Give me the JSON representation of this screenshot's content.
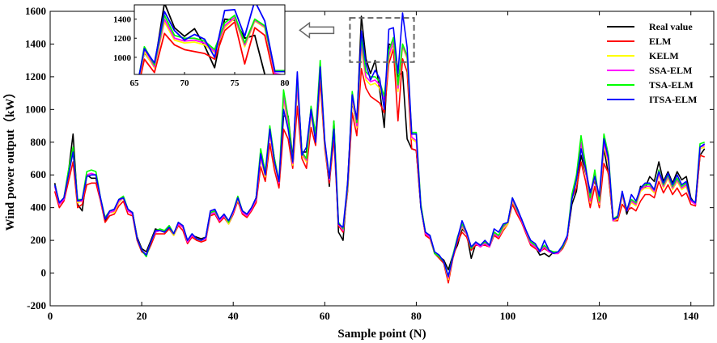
{
  "chart_data": {
    "type": "line",
    "title": "",
    "xlabel": "Sample point (N)",
    "ylabel": "Wind power output（kW）",
    "xlim": [
      0,
      145
    ],
    "ylim": [
      -200,
      1600
    ],
    "xticks": [
      0,
      20,
      40,
      60,
      80,
      100,
      120,
      140
    ],
    "yticks": [
      -200,
      0,
      200,
      400,
      600,
      800,
      1000,
      1200,
      1400,
      1600
    ],
    "legend_position": "top-right",
    "series": [
      {
        "name": "Real value",
        "color": "#000000",
        "values": [
          550,
          420,
          450,
          620,
          850,
          420,
          380,
          600,
          580,
          580,
          450,
          320,
          370,
          380,
          440,
          460,
          380,
          370,
          220,
          150,
          130,
          200,
          270,
          260,
          250,
          290,
          240,
          300,
          280,
          190,
          230,
          220,
          210,
          220,
          370,
          380,
          320,
          360,
          310,
          370,
          460,
          380,
          360,
          400,
          460,
          700,
          600,
          880,
          700,
          560,
          960,
          960,
          700,
          1180,
          740,
          740,
          1000,
          850,
          1220,
          790,
          530,
          930,
          250,
          200,
          560,
          1050,
          900,
          1570,
          1310,
          1220,
          1300,
          1120,
          890,
          1400,
          1390,
          1200,
          1230,
          820,
          760,
          750,
          400,
          240,
          220,
          120,
          100,
          80,
          20,
          110,
          170,
          270,
          240,
          90,
          180,
          160,
          180,
          170,
          250,
          230,
          280,
          310,
          440,
          380,
          330,
          250,
          180,
          160,
          110,
          120,
          100,
          130,
          130,
          160,
          220,
          420,
          500,
          720,
          610,
          500,
          560,
          470,
          760,
          600,
          320,
          330,
          480,
          360,
          440,
          420,
          530,
          520,
          590,
          560,
          680,
          560,
          620,
          550,
          620,
          570,
          590,
          460,
          420,
          720,
          760
        ]
      },
      {
        "name": "ELM",
        "color": "#ff0000",
        "values": [
          500,
          400,
          440,
          560,
          680,
          400,
          420,
          540,
          550,
          550,
          440,
          310,
          350,
          360,
          410,
          440,
          360,
          350,
          200,
          130,
          110,
          170,
          240,
          240,
          240,
          270,
          230,
          290,
          260,
          180,
          220,
          200,
          190,
          200,
          350,
          360,
          310,
          340,
          300,
          360,
          440,
          360,
          340,
          380,
          430,
          650,
          560,
          790,
          630,
          520,
          880,
          820,
          640,
          1020,
          700,
          640,
          890,
          780,
          1180,
          760,
          550,
          820,
          290,
          250,
          500,
          980,
          840,
          1250,
          1130,
          1080,
          1060,
          1040,
          980,
          1280,
          1370,
          930,
          1310,
          1230,
          760,
          750,
          410,
          230,
          210,
          120,
          90,
          60,
          -60,
          90,
          190,
          250,
          220,
          140,
          170,
          170,
          170,
          160,
          230,
          210,
          260,
          300,
          420,
          360,
          310,
          240,
          170,
          150,
          130,
          150,
          130,
          120,
          120,
          150,
          210,
          460,
          520,
          680,
          560,
          400,
          530,
          400,
          670,
          610,
          320,
          320,
          420,
          380,
          400,
          380,
          440,
          480,
          480,
          460,
          560,
          490,
          540,
          480,
          520,
          470,
          490,
          420,
          410,
          720,
          710
        ]
      },
      {
        "name": "KELM",
        "color": "#ffff00",
        "values": [
          530,
          420,
          460,
          600,
          740,
          430,
          440,
          590,
          600,
          600,
          450,
          330,
          370,
          370,
          430,
          460,
          380,
          370,
          210,
          140,
          110,
          190,
          250,
          260,
          250,
          280,
          230,
          300,
          280,
          190,
          230,
          210,
          200,
          210,
          360,
          370,
          320,
          350,
          300,
          370,
          450,
          370,
          350,
          390,
          450,
          700,
          590,
          850,
          670,
          550,
          1060,
          900,
          660,
          1130,
          720,
          680,
          960,
          820,
          1240,
          780,
          570,
          880,
          300,
          260,
          520,
          1060,
          890,
          1370,
          1180,
          1150,
          1160,
          1130,
          1050,
          1310,
          1410,
          1110,
          1380,
          1310,
          820,
          800,
          420,
          240,
          220,
          120,
          100,
          70,
          -40,
          100,
          210,
          280,
          240,
          150,
          180,
          160,
          180,
          160,
          240,
          220,
          270,
          300,
          440,
          380,
          320,
          250,
          180,
          160,
          130,
          160,
          130,
          120,
          120,
          160,
          220,
          460,
          560,
          780,
          620,
          430,
          590,
          420,
          780,
          660,
          320,
          330,
          470,
          380,
          430,
          410,
          500,
          520,
          520,
          490,
          600,
          520,
          580,
          510,
          560,
          510,
          530,
          440,
          420,
          760,
          770
        ]
      },
      {
        "name": "SSA-ELM",
        "color": "#ff00ff",
        "values": [
          530,
          420,
          450,
          610,
          760,
          440,
          440,
          600,
          610,
          600,
          450,
          330,
          370,
          380,
          440,
          460,
          380,
          360,
          210,
          140,
          110,
          190,
          250,
          260,
          250,
          280,
          240,
          300,
          280,
          190,
          230,
          210,
          200,
          210,
          360,
          370,
          320,
          350,
          310,
          370,
          460,
          370,
          350,
          390,
          450,
          710,
          600,
          860,
          680,
          550,
          1080,
          920,
          670,
          1150,
          730,
          690,
          980,
          830,
          1270,
          790,
          570,
          900,
          300,
          260,
          520,
          1090,
          900,
          1400,
          1200,
          1170,
          1180,
          1150,
          1060,
          1330,
          1420,
          1130,
          1390,
          1320,
          830,
          810,
          420,
          240,
          220,
          120,
          100,
          70,
          -30,
          100,
          210,
          290,
          240,
          150,
          180,
          160,
          180,
          160,
          240,
          220,
          280,
          310,
          450,
          380,
          320,
          250,
          180,
          160,
          130,
          160,
          130,
          120,
          120,
          160,
          220,
          470,
          580,
          800,
          630,
          440,
          600,
          430,
          800,
          680,
          320,
          340,
          480,
          380,
          440,
          420,
          510,
          530,
          530,
          500,
          610,
          530,
          590,
          520,
          570,
          520,
          540,
          440,
          420,
          770,
          780
        ]
      },
      {
        "name": "TSA-ELM",
        "color": "#00ff00",
        "values": [
          540,
          430,
          460,
          630,
          770,
          450,
          450,
          620,
          630,
          620,
          460,
          340,
          380,
          390,
          450,
          470,
          390,
          370,
          210,
          140,
          100,
          190,
          260,
          270,
          260,
          290,
          240,
          310,
          290,
          200,
          240,
          210,
          200,
          220,
          370,
          380,
          330,
          360,
          310,
          380,
          470,
          380,
          360,
          400,
          460,
          760,
          620,
          900,
          700,
          560,
          1120,
          950,
          680,
          1200,
          740,
          700,
          1020,
          850,
          1300,
          800,
          580,
          930,
          310,
          270,
          530,
          1110,
          920,
          1440,
          1230,
          1200,
          1200,
          1170,
          1080,
          1360,
          1440,
          1150,
          1400,
          1330,
          860,
          860,
          420,
          250,
          230,
          120,
          100,
          70,
          -20,
          110,
          220,
          300,
          250,
          150,
          190,
          170,
          190,
          170,
          250,
          230,
          290,
          310,
          460,
          390,
          330,
          260,
          190,
          170,
          140,
          170,
          140,
          130,
          130,
          160,
          230,
          480,
          600,
          840,
          660,
          460,
          630,
          440,
          850,
          720,
          330,
          350,
          490,
          390,
          450,
          430,
          520,
          540,
          540,
          510,
          630,
          540,
          600,
          530,
          580,
          530,
          550,
          450,
          430,
          790,
          800
        ]
      },
      {
        "name": "ITSA-ELM",
        "color": "#0000ff",
        "values": [
          540,
          430,
          460,
          600,
          740,
          440,
          450,
          590,
          600,
          600,
          460,
          330,
          380,
          390,
          450,
          460,
          390,
          370,
          210,
          140,
          110,
          190,
          260,
          260,
          250,
          280,
          240,
          310,
          290,
          200,
          240,
          210,
          200,
          220,
          380,
          390,
          330,
          360,
          320,
          380,
          460,
          380,
          360,
          400,
          460,
          730,
          600,
          880,
          680,
          560,
          1000,
          880,
          680,
          1230,
          720,
          770,
          1000,
          800,
          1260,
          810,
          580,
          880,
          300,
          280,
          550,
          1090,
          940,
          1480,
          1280,
          1180,
          1240,
          1190,
          1000,
          1490,
          1500,
          1220,
          1590,
          1380,
          850,
          850,
          400,
          250,
          230,
          130,
          110,
          70,
          -20,
          100,
          210,
          320,
          250,
          160,
          190,
          170,
          200,
          170,
          270,
          250,
          300,
          310,
          460,
          400,
          330,
          260,
          200,
          180,
          130,
          200,
          140,
          120,
          130,
          170,
          230,
          450,
          570,
          760,
          640,
          490,
          590,
          470,
          820,
          700,
          330,
          340,
          500,
          380,
          480,
          440,
          520,
          550,
          550,
          510,
          620,
          550,
          610,
          540,
          600,
          540,
          560,
          450,
          430,
          770,
          790
        ]
      }
    ],
    "inset": {
      "xlim": [
        65,
        80
      ],
      "ylim": [
        820,
        1550
      ],
      "xticks": [
        65,
        70,
        75,
        80
      ],
      "yticks": [
        1000,
        1200,
        1400
      ]
    }
  }
}
